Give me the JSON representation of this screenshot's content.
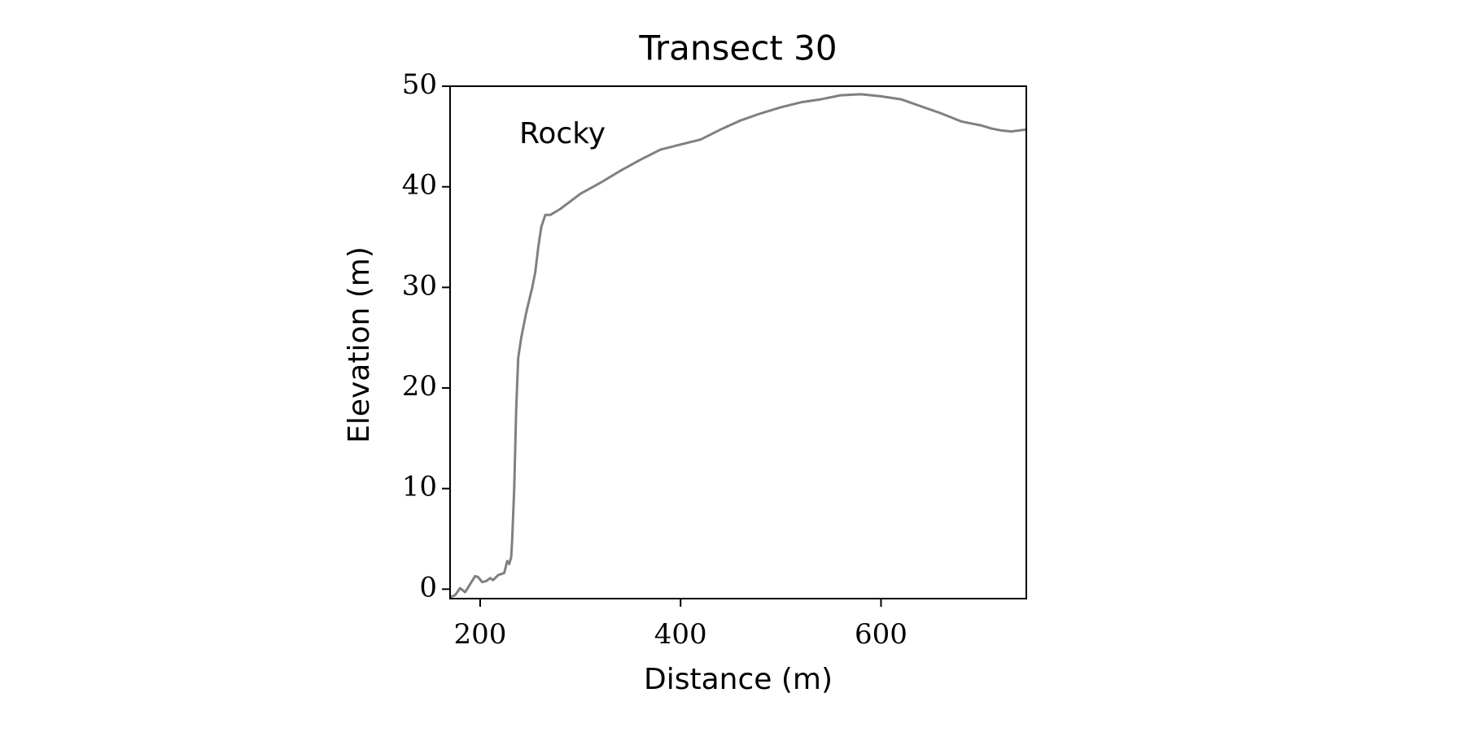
{
  "chart_data": {
    "type": "line",
    "title": "Transect 30",
    "xlabel": "Distance (m)",
    "ylabel": "Elevation (m)",
    "annotations": [
      "Rocky"
    ],
    "color": "#808080",
    "x": [
      170,
      175,
      180,
      185,
      190,
      195,
      198,
      202,
      206,
      210,
      213,
      218,
      224,
      227,
      229,
      231,
      232,
      234,
      236,
      238,
      241,
      246,
      252,
      255,
      258,
      261,
      265,
      270,
      280,
      300,
      320,
      340,
      360,
      380,
      400,
      420,
      440,
      460,
      480,
      500,
      520,
      540,
      560,
      580,
      600,
      620,
      640,
      660,
      680,
      700,
      710,
      720,
      730,
      745
    ],
    "values": [
      -0.8,
      -0.6,
      0.1,
      -0.3,
      0.5,
      1.3,
      1.2,
      0.7,
      0.8,
      1.1,
      0.9,
      1.4,
      1.6,
      2.8,
      2.5,
      3.2,
      5,
      10,
      18,
      23,
      25,
      27.5,
      30,
      31.5,
      34,
      36,
      37.2,
      37.2,
      37.8,
      39.3,
      40.4,
      41.6,
      42.7,
      43.7,
      44.2,
      44.7,
      45.7,
      46.6,
      47.3,
      47.9,
      48.4,
      48.7,
      49.1,
      49.2,
      49.0,
      48.7,
      48.0,
      47.3,
      46.5,
      46.1,
      45.8,
      45.6,
      45.5,
      45.7
    ],
    "xlim": [
      170,
      745
    ],
    "ylim": [
      -0.94,
      50
    ],
    "xticks": [
      200,
      400,
      600
    ],
    "yticks": [
      0,
      10,
      20,
      30,
      40,
      50
    ]
  }
}
